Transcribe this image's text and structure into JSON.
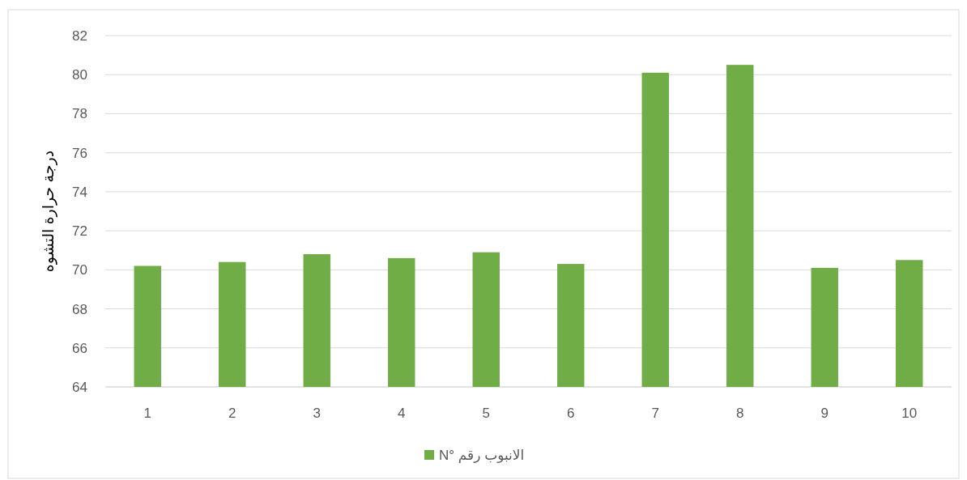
{
  "chart_data": {
    "type": "bar",
    "ylabel": "درجة حرارة التشوه",
    "categories": [
      "1",
      "2",
      "3",
      "4",
      "5",
      "6",
      "7",
      "8",
      "9",
      "10"
    ],
    "series": [
      {
        "name": "الانبوب رقم N°",
        "color": "#70ad47",
        "values": [
          70.2,
          70.4,
          70.8,
          70.6,
          70.9,
          70.3,
          80.1,
          80.5,
          70.1,
          70.5
        ]
      }
    ],
    "ylim": [
      64,
      82
    ],
    "yticks": [
      64,
      66,
      68,
      70,
      72,
      74,
      76,
      78,
      80,
      82
    ],
    "grid": "y",
    "legend": "bottom"
  }
}
